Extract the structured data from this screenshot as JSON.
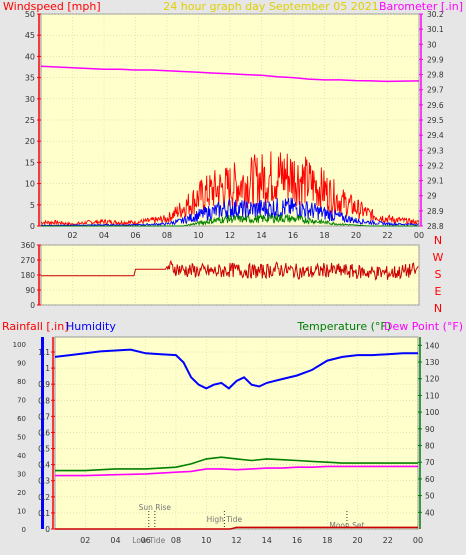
{
  "header": {
    "left_label": "Windspeed [mph]",
    "center_label": "24 hour graph day    September 05 2021",
    "right_label": "Barometer [.in]"
  },
  "colors": {
    "plot_bg": "#ffffcc",
    "grid": "#c8c8aa",
    "axis_red": "#ff0000",
    "axis_magenta": "#ff00ff",
    "axis_blue": "#0000ff",
    "axis_green": "#008000",
    "title_yellow": "#e0d000",
    "wind_gust": "#ff0000",
    "wind_avg": "#0000ff",
    "wind_min": "#008000",
    "baro": "#ff00ff",
    "direction": "#cc0000",
    "humidity": "#0000ff",
    "temperature": "#008000",
    "dewpoint": "#ff00ff",
    "rain": "#cc0000"
  },
  "hour_labels": [
    "02",
    "04",
    "06",
    "08",
    "10",
    "12",
    "14",
    "16",
    "18",
    "20",
    "22",
    "00"
  ],
  "chart_data": [
    {
      "type": "line",
      "x_unit": "hour",
      "xlim": [
        0,
        24
      ],
      "left_axis": {
        "label": "Windspeed [mph]",
        "ylim": [
          0,
          50
        ],
        "ticks": [
          0,
          5,
          10,
          15,
          20,
          25,
          30,
          35,
          40,
          45,
          50
        ]
      },
      "right_axis": {
        "label": "Barometer [.in]",
        "ylim": [
          28.8,
          30.2
        ],
        "ticks": [
          "28.8",
          "28.9",
          "29",
          "29.1",
          "29.2",
          "29.3",
          "29.4",
          "29.5",
          "29.6",
          "29.7",
          "29.8",
          "29.9",
          "30",
          "30.1",
          "30.2"
        ]
      },
      "series": [
        {
          "axis": "right",
          "color": "#ff00ff",
          "points": [
            [
              0,
              29.855
            ],
            [
              1,
              29.85
            ],
            [
              2,
              29.845
            ],
            [
              3,
              29.84
            ],
            [
              4,
              29.835
            ],
            [
              5,
              29.835
            ],
            [
              6,
              29.83
            ],
            [
              7,
              29.83
            ],
            [
              8,
              29.825
            ],
            [
              9,
              29.82
            ],
            [
              10,
              29.815
            ],
            [
              11,
              29.81
            ],
            [
              12,
              29.805
            ],
            [
              13,
              29.8
            ],
            [
              14,
              29.795
            ],
            [
              15,
              29.785
            ],
            [
              16,
              29.78
            ],
            [
              17,
              29.77
            ],
            [
              18,
              29.765
            ],
            [
              19,
              29.765
            ],
            [
              20,
              29.76
            ],
            [
              21,
              29.758
            ],
            [
              22,
              29.755
            ],
            [
              23,
              29.757
            ],
            [
              24,
              29.758
            ]
          ]
        },
        {
          "axis": "left",
          "color": "#ff0000",
          "points": [
            [
              0,
              1
            ],
            [
              1,
              1
            ],
            [
              2,
              0.5
            ],
            [
              3,
              1
            ],
            [
              4,
              1.2
            ],
            [
              5,
              1
            ],
            [
              6,
              1
            ],
            [
              7,
              1.5
            ],
            [
              8,
              2
            ],
            [
              9,
              5
            ],
            [
              10,
              8
            ],
            [
              11,
              10
            ],
            [
              12,
              11
            ],
            [
              13,
              12
            ],
            [
              14,
              13
            ],
            [
              15,
              14
            ],
            [
              16,
              14
            ],
            [
              17,
              12
            ],
            [
              18,
              10
            ],
            [
              19,
              7
            ],
            [
              20,
              5
            ],
            [
              21,
              3
            ],
            [
              22,
              2
            ],
            [
              23,
              1.5
            ],
            [
              24,
              1
            ]
          ]
        },
        {
          "axis": "left",
          "color": "#0000ff",
          "points": [
            [
              0,
              0.2
            ],
            [
              2,
              0.2
            ],
            [
              4,
              0.3
            ],
            [
              6,
              0.3
            ],
            [
              8,
              0.6
            ],
            [
              9,
              1.5
            ],
            [
              10,
              3
            ],
            [
              11,
              4
            ],
            [
              12,
              5
            ],
            [
              13,
              4.5
            ],
            [
              14,
              4.8
            ],
            [
              15,
              5
            ],
            [
              16,
              5
            ],
            [
              17,
              4.5
            ],
            [
              18,
              3.5
            ],
            [
              19,
              2.5
            ],
            [
              20,
              1.5
            ],
            [
              21,
              1
            ],
            [
              22,
              0.6
            ],
            [
              24,
              0.4
            ]
          ]
        },
        {
          "axis": "left",
          "color": "#008000",
          "points": [
            [
              0,
              0
            ],
            [
              9,
              0
            ],
            [
              10,
              0.8
            ],
            [
              11,
              1.5
            ],
            [
              12,
              2
            ],
            [
              13,
              1.8
            ],
            [
              14,
              2
            ],
            [
              15,
              2.2
            ],
            [
              16,
              2
            ],
            [
              17,
              1.6
            ],
            [
              18,
              1
            ],
            [
              19,
              0.5
            ],
            [
              20,
              0.2
            ],
            [
              21,
              0
            ],
            [
              24,
              0
            ]
          ]
        }
      ]
    },
    {
      "type": "line",
      "x_unit": "hour",
      "xlim": [
        0,
        24
      ],
      "left_axis": {
        "label": "",
        "ylim": [
          0,
          360
        ],
        "ticks": [
          0,
          90,
          180,
          270,
          360
        ]
      },
      "right_letters": [
        "N",
        "W",
        "S",
        "E",
        "N"
      ],
      "series": [
        {
          "color": "#cc0000",
          "points": [
            [
              0,
              175
            ],
            [
              5.9,
              175
            ],
            [
              6,
              215
            ],
            [
              7.9,
              215
            ],
            [
              8,
              230
            ],
            [
              9,
              210
            ],
            [
              10,
              205
            ],
            [
              11,
              200
            ],
            [
              12,
              210
            ],
            [
              13,
              205
            ],
            [
              14,
              200
            ],
            [
              15,
              215
            ],
            [
              16,
              205
            ],
            [
              17,
              195
            ],
            [
              18,
              210
            ],
            [
              19,
              205
            ],
            [
              20,
              200
            ],
            [
              21,
              195
            ],
            [
              22,
              190
            ],
            [
              23,
              200
            ],
            [
              23.8,
              210
            ],
            [
              24,
              240
            ]
          ]
        }
      ]
    },
    {
      "type": "line",
      "x_unit": "hour",
      "xlim": [
        0,
        24
      ],
      "left_axis": {
        "label": "Rainfall [.in]",
        "ylim": [
          0,
          1.1
        ],
        "ticks": [
          "0",
          "0.1",
          "0.2",
          "0.3",
          "0.4",
          "0.5",
          "0.6",
          "0.7",
          "0.8",
          "0.9",
          "1",
          "1.1"
        ]
      },
      "humidity_axis": {
        "label": "Humidity",
        "ylim": [
          0,
          100
        ],
        "ticks": [
          0,
          10,
          20,
          30,
          40,
          50,
          60,
          70,
          80,
          90,
          100
        ]
      },
      "right_axis": {
        "label": "Temperature (°F)",
        "ylim": [
          30,
          145
        ],
        "ticks": [
          40,
          50,
          60,
          70,
          80,
          90,
          100,
          110,
          120,
          130,
          140
        ]
      },
      "right_label_2": "Dew Point (°F)",
      "annotations": [
        {
          "label": "Sun Rise",
          "x": 6.6
        },
        {
          "label": "Low Tide",
          "x": 6.2
        },
        {
          "label": "High Tide",
          "x": 11.2
        },
        {
          "label": "Moon Set",
          "x": 19.3
        }
      ],
      "series": [
        {
          "name": "Humidity",
          "axis": "humidity",
          "color": "#0000ff",
          "points": [
            [
              0,
              93
            ],
            [
              1,
              94
            ],
            [
              2,
              95
            ],
            [
              3,
              96
            ],
            [
              4,
              96.5
            ],
            [
              5,
              97
            ],
            [
              6,
              95
            ],
            [
              7,
              94.5
            ],
            [
              8,
              94
            ],
            [
              8.5,
              90
            ],
            [
              9,
              82
            ],
            [
              9.5,
              78
            ],
            [
              10,
              76
            ],
            [
              10.5,
              78
            ],
            [
              11,
              79
            ],
            [
              11.5,
              76
            ],
            [
              12,
              80
            ],
            [
              12.5,
              82
            ],
            [
              13,
              78
            ],
            [
              13.5,
              77
            ],
            [
              14,
              79
            ],
            [
              15,
              81
            ],
            [
              16,
              83
            ],
            [
              17,
              86
            ],
            [
              18,
              91
            ],
            [
              19,
              93
            ],
            [
              20,
              94
            ],
            [
              21,
              94
            ],
            [
              22,
              94.5
            ],
            [
              23,
              95
            ],
            [
              24,
              95
            ]
          ]
        },
        {
          "name": "Temperature",
          "axis": "right",
          "color": "#008000",
          "points": [
            [
              0,
              65
            ],
            [
              2,
              65
            ],
            [
              4,
              66
            ],
            [
              6,
              66
            ],
            [
              7,
              66.5
            ],
            [
              8,
              67
            ],
            [
              9,
              69
            ],
            [
              10,
              72
            ],
            [
              11,
              73
            ],
            [
              12,
              72
            ],
            [
              13,
              71
            ],
            [
              14,
              72
            ],
            [
              15,
              71.5
            ],
            [
              16,
              71
            ],
            [
              17,
              70.5
            ],
            [
              18,
              70
            ],
            [
              19,
              69.5
            ],
            [
              20,
              69.5
            ],
            [
              21,
              69.5
            ],
            [
              22,
              69.5
            ],
            [
              23,
              69.5
            ],
            [
              24,
              69.5
            ]
          ]
        },
        {
          "name": "Dew Point",
          "axis": "right",
          "color": "#ff00ff",
          "points": [
            [
              0,
              62
            ],
            [
              2,
              62
            ],
            [
              4,
              62.5
            ],
            [
              6,
              63
            ],
            [
              7,
              63.5
            ],
            [
              8,
              64
            ],
            [
              9,
              64.5
            ],
            [
              10,
              66
            ],
            [
              11,
              66
            ],
            [
              12,
              65.5
            ],
            [
              13,
              66
            ],
            [
              14,
              66.5
            ],
            [
              15,
              66.5
            ],
            [
              16,
              67
            ],
            [
              17,
              67
            ],
            [
              18,
              67.5
            ],
            [
              19,
              67.5
            ],
            [
              20,
              67.5
            ],
            [
              21,
              67.5
            ],
            [
              22,
              67.5
            ],
            [
              23,
              67.5
            ],
            [
              24,
              67.5
            ]
          ]
        },
        {
          "name": "Rainfall",
          "axis": "left",
          "color": "#cc0000",
          "points": [
            [
              0,
              0
            ],
            [
              11.6,
              0
            ],
            [
              12,
              0.01
            ],
            [
              24,
              0.01
            ]
          ]
        }
      ]
    }
  ]
}
